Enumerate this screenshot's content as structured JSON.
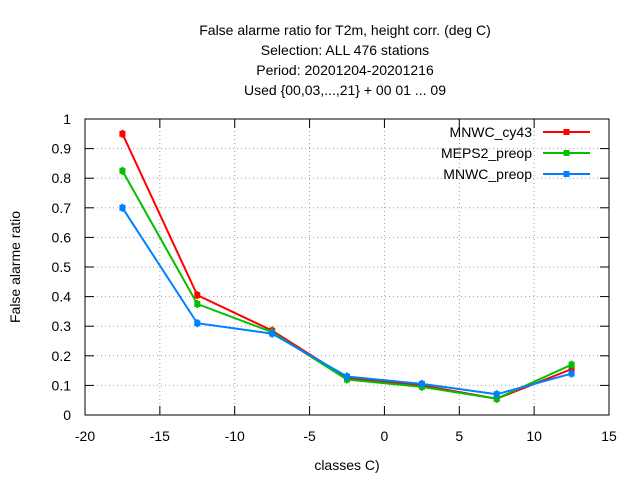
{
  "chart_data": {
    "type": "line",
    "title_lines": [
      "False alarme ratio  for T2m, height corr. (deg C)",
      "Selection: ALL    476 stations",
      "Period: 20201204-20201216",
      "Used {00,03,...,21} + 00 01 ... 09"
    ],
    "xlabel": "classes C)",
    "ylabel": "False alarme ratio",
    "xlim": [
      -20,
      15
    ],
    "ylim": [
      0,
      1
    ],
    "xticks": [
      -20,
      -15,
      -10,
      -5,
      0,
      5,
      10,
      15
    ],
    "xtick_labels": [
      "-20",
      "-15",
      "-10",
      "-5",
      "0",
      "5",
      "10",
      "15"
    ],
    "yticks": [
      0,
      0.1,
      0.2,
      0.3,
      0.4,
      0.5,
      0.6,
      0.7,
      0.8,
      0.9,
      1
    ],
    "ytick_labels": [
      "0",
      "0.1",
      "0.2",
      "0.3",
      "0.4",
      "0.5",
      "0.6",
      "0.7",
      "0.8",
      "0.9",
      "1"
    ],
    "grid": true,
    "legend_position": "top-right",
    "x": [
      -17.5,
      -12.5,
      -7.5,
      -2.5,
      2.5,
      7.5,
      12.5
    ],
    "series": [
      {
        "name": "MNWC_cy43",
        "color": "#ff0000",
        "values": [
          0.95,
          0.405,
          0.285,
          0.125,
          0.1,
          0.055,
          0.155
        ]
      },
      {
        "name": "MEPS2_preop",
        "color": "#00c000",
        "values": [
          0.825,
          0.375,
          0.28,
          0.12,
          0.095,
          0.055,
          0.17
        ]
      },
      {
        "name": "MNWC_preop",
        "color": "#0080ff",
        "values": [
          0.7,
          0.31,
          0.275,
          0.13,
          0.105,
          0.07,
          0.14
        ]
      }
    ]
  }
}
